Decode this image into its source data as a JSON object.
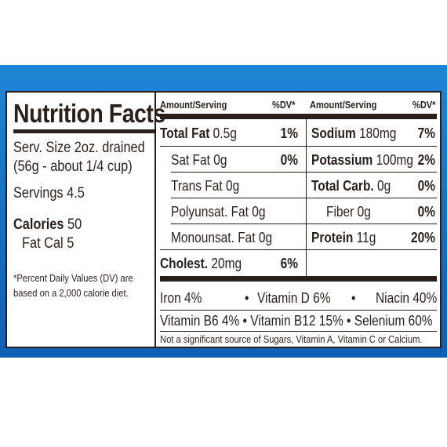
{
  "panel": {
    "title": "Nutrition Facts",
    "serving_size_line1": "Serv. Size 2oz. drained",
    "serving_size_line2": "(56g - about 1/4 cup)",
    "servings": "Servings 4.5",
    "calories_label": "Calories",
    "calories_value": "50",
    "fat_cal": "Fat Cal 5",
    "footnote_line1": "*Percent Daily Values (DV) are",
    "footnote_line2": "based on a 2,000 calorie diet."
  },
  "table": {
    "header_amount_left": "Amount/Serving",
    "header_dv_left": "%DV*",
    "header_amount_right": "Amount/Serving",
    "header_dv_right": "%DV*",
    "left_rows": [
      {
        "name": "Total Fat",
        "amount": "0.5g",
        "dv": "1%"
      },
      {
        "name": "Sat Fat",
        "amount": "0g",
        "dv": "0%"
      },
      {
        "name": "Trans Fat",
        "amount": "0g",
        "dv": ""
      },
      {
        "name": "Polyunsat. Fat",
        "amount": "0g",
        "dv": ""
      },
      {
        "name": "Monounsat. Fat",
        "amount": "0g",
        "dv": ""
      }
    ],
    "right_rows": [
      {
        "name": "Sodium",
        "amount": "180mg",
        "dv": "7%"
      },
      {
        "name": "Potassium",
        "amount": "100mg",
        "dv": "2%"
      },
      {
        "name": "Total Carb.",
        "amount": "0g",
        "dv": "0%"
      },
      {
        "name": "Fiber",
        "amount": "0g",
        "dv": "0%"
      },
      {
        "name": "Protein",
        "amount": "11g",
        "dv": "20%"
      }
    ],
    "cholesterol": {
      "name": "Cholest.",
      "amount": "20mg",
      "dv": "6%"
    },
    "vitamins_line1": {
      "a": "Iron 4%",
      "b": "Vitamin D 6%",
      "c": "Niacin 40%"
    },
    "vitamins_line2": "Vitamin B6 4% • Vitamin B12 15% • Selenium 60%",
    "bullet": "•",
    "disclaimer": "Not a significant source of Sugars, Vitamin A, Vitamin C or Calcium."
  },
  "colors": {
    "ink": "#2b1f1b",
    "band": "#1673c6",
    "background": "#ffffff"
  }
}
